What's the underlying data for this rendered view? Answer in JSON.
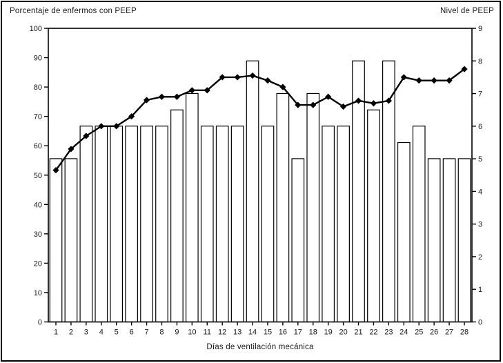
{
  "header": {
    "left_title": "Porcentaje de enfermos con PEEP",
    "right_title": "Nivel de PEEP"
  },
  "colors": {
    "foreground": "#000000",
    "background": "#ffffff",
    "bar_fill": "#ffffff",
    "bar_border": "#000000",
    "line_color": "#000000"
  },
  "chart_data": {
    "type": "bar",
    "subtype": "combo-bar-line-dual-axis",
    "x": [
      1,
      2,
      3,
      4,
      5,
      6,
      7,
      8,
      9,
      10,
      11,
      12,
      13,
      14,
      15,
      16,
      17,
      18,
      19,
      20,
      21,
      22,
      23,
      24,
      25,
      26,
      27,
      28
    ],
    "xlabel": "Días de ventilación mecánica",
    "left_axis": {
      "title": "Porcentaje de enfermos con PEEP",
      "min": 0,
      "max": 100,
      "step": 10
    },
    "right_axis": {
      "title": "Nivel de PEEP",
      "min": 0,
      "max": 9,
      "step": 1
    },
    "grid": false,
    "legend": false,
    "series": [
      {
        "name": "Porcentaje de enfermos con PEEP",
        "type": "bar",
        "axis": "left",
        "values": [
          55.6,
          55.6,
          66.7,
          66.7,
          66.7,
          66.7,
          66.7,
          66.7,
          72.2,
          77.8,
          66.7,
          66.7,
          66.7,
          88.9,
          66.7,
          77.8,
          55.6,
          77.8,
          66.7,
          66.7,
          88.9,
          72.2,
          88.9,
          61.1,
          66.7,
          55.6,
          55.6,
          55.6
        ]
      },
      {
        "name": "Nivel de PEEP",
        "type": "line",
        "axis": "right",
        "marker": "diamond",
        "values": [
          4.65,
          5.3,
          5.7,
          6.0,
          6.0,
          6.3,
          6.8,
          6.9,
          6.9,
          7.1,
          7.1,
          7.5,
          7.5,
          7.55,
          7.4,
          7.2,
          6.65,
          6.65,
          6.9,
          6.6,
          6.78,
          6.7,
          6.78,
          7.5,
          7.4,
          7.4,
          7.4,
          7.75
        ]
      }
    ]
  }
}
